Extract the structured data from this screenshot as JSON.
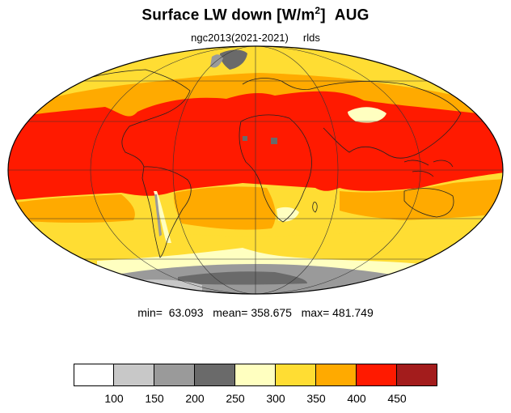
{
  "title": {
    "main": "Surface LW down [W/m",
    "superscript": "2",
    "bracket": "]",
    "month": "AUG"
  },
  "subtitle": {
    "left": "ngc2013(2021-2021)",
    "right": "rlds"
  },
  "stats": {
    "text": "min=  63.093   mean= 358.675   max= 481.749"
  },
  "colorbar": {
    "colors": [
      "#ffffff",
      "#c8c8c8",
      "#9a9a9a",
      "#6a6a6a",
      "#ffffc0",
      "#ffdd33",
      "#ffaa00",
      "#ff1a00",
      "#a31c1c"
    ],
    "labels": [
      "100",
      "150",
      "200",
      "250",
      "300",
      "350",
      "400",
      "450"
    ]
  },
  "map": {
    "projection": "mollweide",
    "palette": {
      "hot": "#ff1a00",
      "warm": "#ffaa00",
      "mild": "#ffdd33",
      "cool": "#ffffc0",
      "cold1": "#9a9a9a",
      "cold2": "#6a6a6a",
      "cold3": "#c8c8c8"
    }
  }
}
